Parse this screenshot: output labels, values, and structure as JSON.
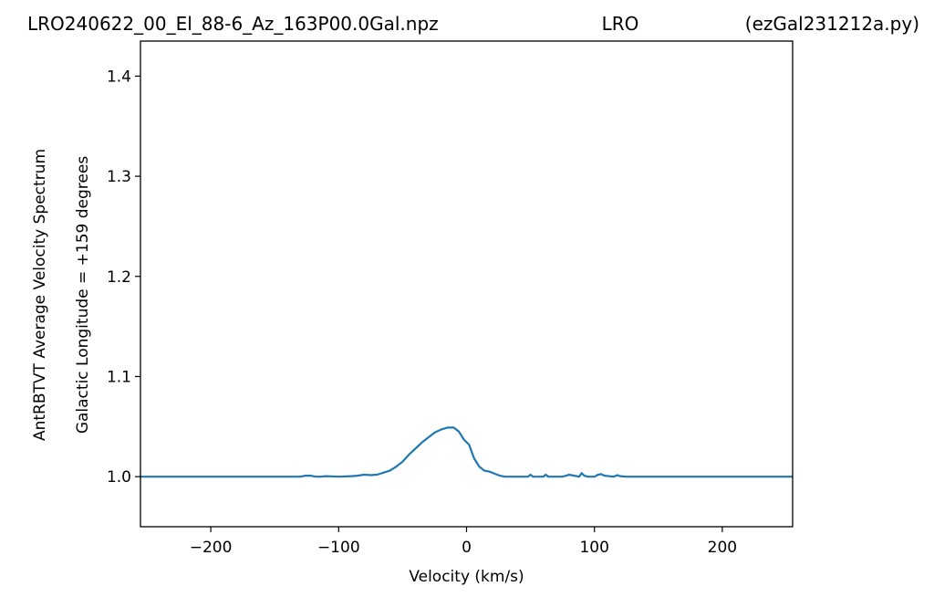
{
  "header": {
    "left": "LRO240622_00_El_88-6_Az_163P00.0Gal.npz",
    "center": "LRO",
    "right": "(ezGal231212a.py)"
  },
  "chart_data": {
    "type": "line",
    "xlabel": "Velocity (km/s)",
    "ylabel_line1": "AntRBTVT Average Velocity Spectrum",
    "ylabel_line2": "Galactic Longitude = +159 degrees",
    "xlim": [
      -255,
      255
    ],
    "ylim": [
      0.95,
      1.435
    ],
    "x_ticks": [
      -200,
      -100,
      0,
      100,
      200
    ],
    "x_tick_labels": [
      "−200",
      "−100",
      "0",
      "100",
      "200"
    ],
    "y_ticks": [
      1.0,
      1.1,
      1.2,
      1.3,
      1.4
    ],
    "y_tick_labels": [
      "1.0",
      "1.1",
      "1.2",
      "1.3",
      "1.4"
    ],
    "grid": false,
    "line_color": "#1f77b4",
    "series": [
      {
        "x": [
          -255,
          -130,
          -126,
          -122,
          -118,
          -114,
          -110,
          -100,
          -90,
          -85,
          -80,
          -75,
          -70,
          -65,
          -60,
          -55,
          -50,
          -45,
          -40,
          -35,
          -30,
          -25,
          -20,
          -15,
          -10,
          -6,
          -2,
          2,
          6,
          10,
          14,
          18,
          22,
          26,
          30,
          40,
          48,
          50,
          52,
          60,
          62,
          64,
          75,
          78,
          80,
          88,
          90,
          92,
          95,
          100,
          103,
          105,
          108,
          115,
          118,
          120,
          125,
          255
        ],
        "y": [
          1.0,
          1.0,
          1.001,
          1.001,
          1.0,
          1.0,
          1.0005,
          1.0,
          1.0005,
          1.001,
          1.002,
          1.0015,
          1.002,
          1.004,
          1.006,
          1.01,
          1.015,
          1.022,
          1.028,
          1.034,
          1.039,
          1.044,
          1.047,
          1.049,
          1.049,
          1.045,
          1.037,
          1.032,
          1.018,
          1.01,
          1.006,
          1.005,
          1.003,
          1.001,
          1.0,
          1.0,
          1.0,
          1.002,
          1.0,
          1.0,
          1.002,
          1.0,
          1.0,
          1.001,
          1.002,
          1.0,
          1.0035,
          1.001,
          1.0,
          1.0,
          1.002,
          1.0025,
          1.001,
          1.0,
          1.0015,
          1.0005,
          1.0,
          1.0
        ]
      }
    ]
  }
}
